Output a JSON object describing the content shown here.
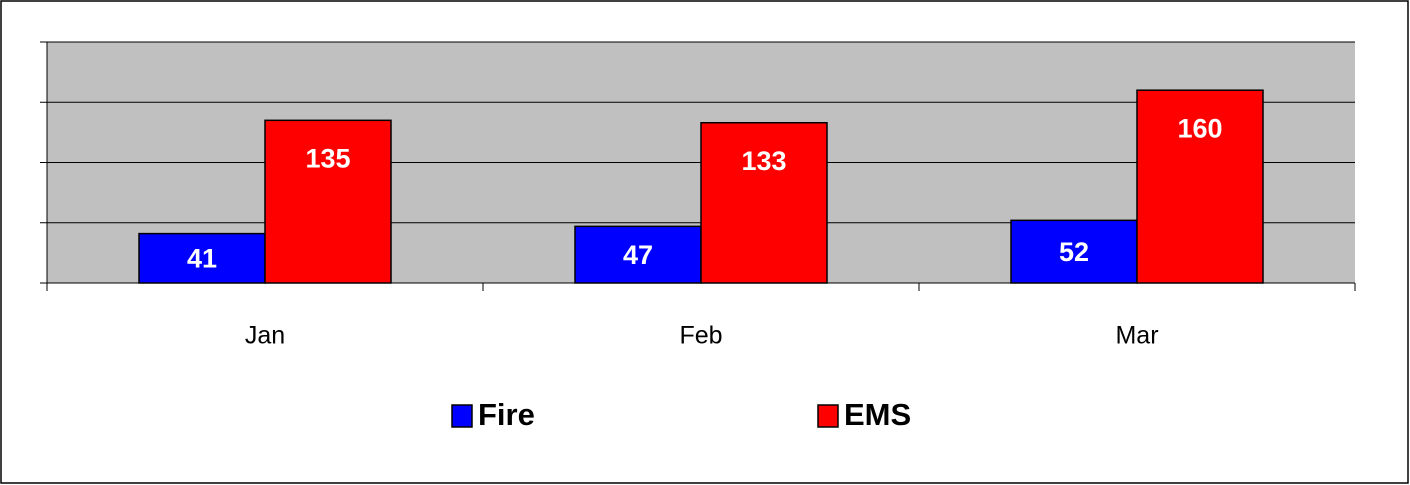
{
  "chart_data": {
    "type": "bar",
    "categories": [
      "Jan",
      "Feb",
      "Mar"
    ],
    "series": [
      {
        "name": "Fire",
        "color": "#0000ff",
        "values": [
          41,
          47,
          52
        ]
      },
      {
        "name": "EMS",
        "color": "#ff0000",
        "values": [
          135,
          133,
          160
        ]
      }
    ],
    "ylim": [
      0,
      200
    ],
    "yticks": [
      0,
      50,
      100,
      150,
      200
    ],
    "grid": true,
    "legend": "bottom"
  }
}
